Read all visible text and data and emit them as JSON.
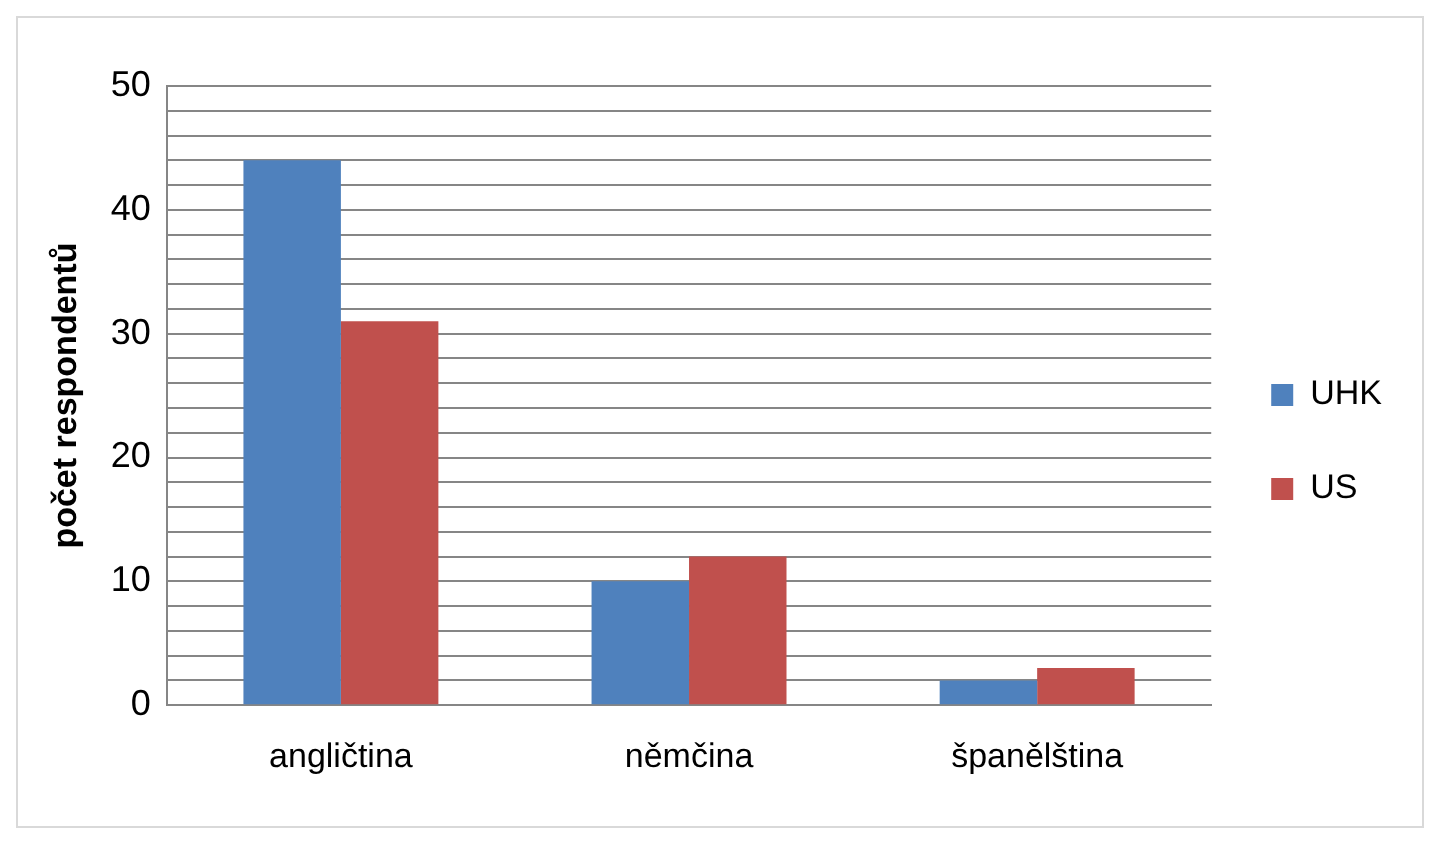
{
  "chart_data": {
    "type": "bar",
    "ylabel": "počet respondentů",
    "categories": [
      "angličtina",
      "němčina",
      "španělština"
    ],
    "series": [
      {
        "name": "UHK",
        "color": "#4f81bd",
        "values": [
          44,
          10,
          2
        ]
      },
      {
        "name": "US",
        "color": "#c0504d",
        "values": [
          31,
          12,
          3
        ]
      }
    ],
    "ylim": [
      0,
      50
    ],
    "yticks": [
      0,
      {
        "value": 2,
        "label": null
      },
      {
        "value": 4,
        "label": null
      },
      {
        "value": 6,
        "label": null
      },
      {
        "value": 8,
        "label": null
      },
      10,
      {
        "value": 12,
        "label": null
      },
      {
        "value": 14,
        "label": null
      },
      {
        "value": 16,
        "label": null
      },
      {
        "value": 18,
        "label": null
      },
      20,
      {
        "value": 22,
        "label": null
      },
      {
        "value": 24,
        "label": null
      },
      {
        "value": 26,
        "label": null
      },
      {
        "value": 28,
        "label": null
      },
      30,
      {
        "value": 32,
        "label": null
      },
      {
        "value": 34,
        "label": null
      },
      {
        "value": 36,
        "label": null
      },
      {
        "value": 38,
        "label": null
      },
      40,
      {
        "value": 42,
        "label": null
      },
      {
        "value": 44,
        "label": null
      },
      {
        "value": 46,
        "label": null
      },
      {
        "value": 48,
        "label": null
      },
      50
    ],
    "grid": "y",
    "legend": "right"
  }
}
